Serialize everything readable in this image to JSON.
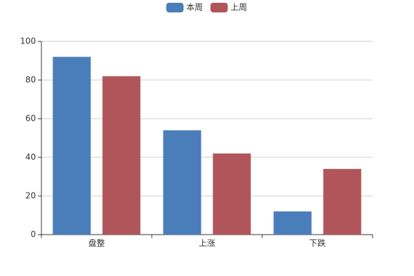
{
  "chart_data": {
    "type": "bar",
    "categories": [
      "盘整",
      "上涨",
      "下跌"
    ],
    "series": [
      {
        "name": "本周",
        "color": "#4a7ebb",
        "values": [
          92,
          54,
          12
        ]
      },
      {
        "name": "上周",
        "color": "#b0565a",
        "values": [
          82,
          42,
          34
        ]
      }
    ],
    "ylim": [
      0,
      100
    ],
    "yticks": [
      0,
      20,
      40,
      60,
      80,
      100
    ],
    "grid": true,
    "legend": "top"
  }
}
